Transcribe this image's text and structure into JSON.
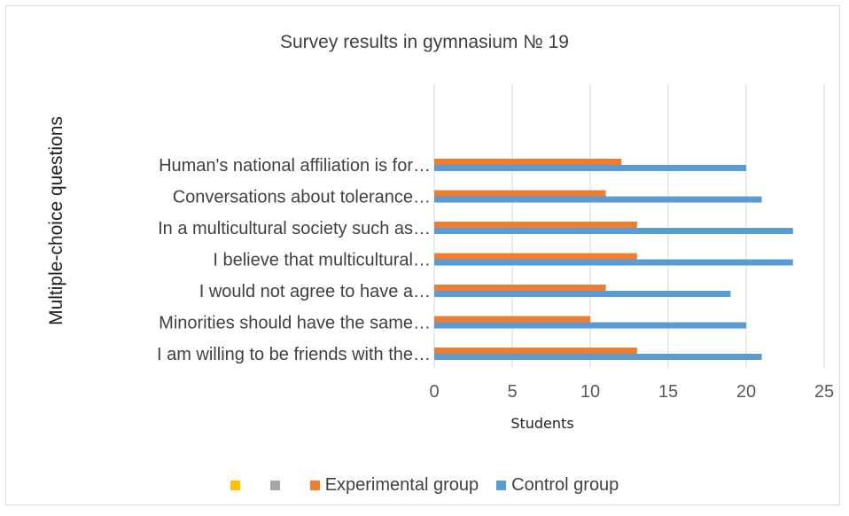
{
  "chart_data": {
    "type": "bar",
    "orientation": "horizontal",
    "title": "Survey results in gymnasium № 19",
    "xlabel": "Students",
    "ylabel": "Multiple-choice questions",
    "categories": [
      "Human's national affiliation is for…",
      "Conversations about tolerance…",
      "In a multicultural society such as…",
      "I believe that multicultural…",
      "I would not agree to have a…",
      "Minorities should have the same…",
      "I am willing to be friends with the…"
    ],
    "series": [
      {
        "name": "",
        "values": [
          0,
          0,
          0,
          0,
          0,
          0,
          0
        ],
        "color": "#ffc000"
      },
      {
        "name": "",
        "values": [
          0,
          0,
          0,
          0,
          0,
          0,
          0
        ],
        "color": "#a5a5a5"
      },
      {
        "name": "Experimental group",
        "values": [
          12,
          11,
          13,
          13,
          11,
          10,
          13
        ],
        "color": "#ed7d31"
      },
      {
        "name": "Control group",
        "values": [
          20,
          21,
          23,
          23,
          19,
          20,
          21
        ],
        "color": "#5b9bd5"
      }
    ],
    "xlim": [
      0,
      25
    ],
    "x_ticks": [
      "0",
      "5",
      "10",
      "15",
      "20",
      "25"
    ],
    "grid": "vertical",
    "legend_position": "bottom"
  }
}
